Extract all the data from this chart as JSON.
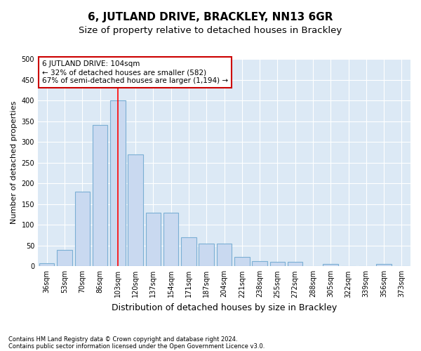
{
  "title": "6, JUTLAND DRIVE, BRACKLEY, NN13 6GR",
  "subtitle": "Size of property relative to detached houses in Brackley",
  "xlabel": "Distribution of detached houses by size in Brackley",
  "ylabel": "Number of detached properties",
  "categories": [
    "36sqm",
    "53sqm",
    "70sqm",
    "86sqm",
    "103sqm",
    "120sqm",
    "137sqm",
    "154sqm",
    "171sqm",
    "187sqm",
    "204sqm",
    "221sqm",
    "238sqm",
    "255sqm",
    "272sqm",
    "288sqm",
    "305sqm",
    "322sqm",
    "339sqm",
    "356sqm",
    "373sqm"
  ],
  "values": [
    8,
    40,
    180,
    340,
    400,
    270,
    130,
    130,
    70,
    55,
    55,
    22,
    13,
    10,
    10,
    0,
    5,
    0,
    0,
    5,
    0
  ],
  "bar_color": "#c9d9f0",
  "bar_edge_color": "#7bafd4",
  "red_line_index": 4,
  "annotation_line1": "6 JUTLAND DRIVE: 104sqm",
  "annotation_line2": "← 32% of detached houses are smaller (582)",
  "annotation_line3": "67% of semi-detached houses are larger (1,194) →",
  "annotation_box_color": "#ffffff",
  "annotation_box_edge": "#cc0000",
  "ylim": [
    0,
    500
  ],
  "yticks": [
    0,
    50,
    100,
    150,
    200,
    250,
    300,
    350,
    400,
    450,
    500
  ],
  "plot_bg_color": "#dce9f5",
  "footer_line1": "Contains HM Land Registry data © Crown copyright and database right 2024.",
  "footer_line2": "Contains public sector information licensed under the Open Government Licence v3.0.",
  "title_fontsize": 11,
  "subtitle_fontsize": 9.5,
  "xlabel_fontsize": 9,
  "ylabel_fontsize": 8,
  "tick_fontsize": 7,
  "annotation_fontsize": 7.5,
  "footer_fontsize": 6
}
